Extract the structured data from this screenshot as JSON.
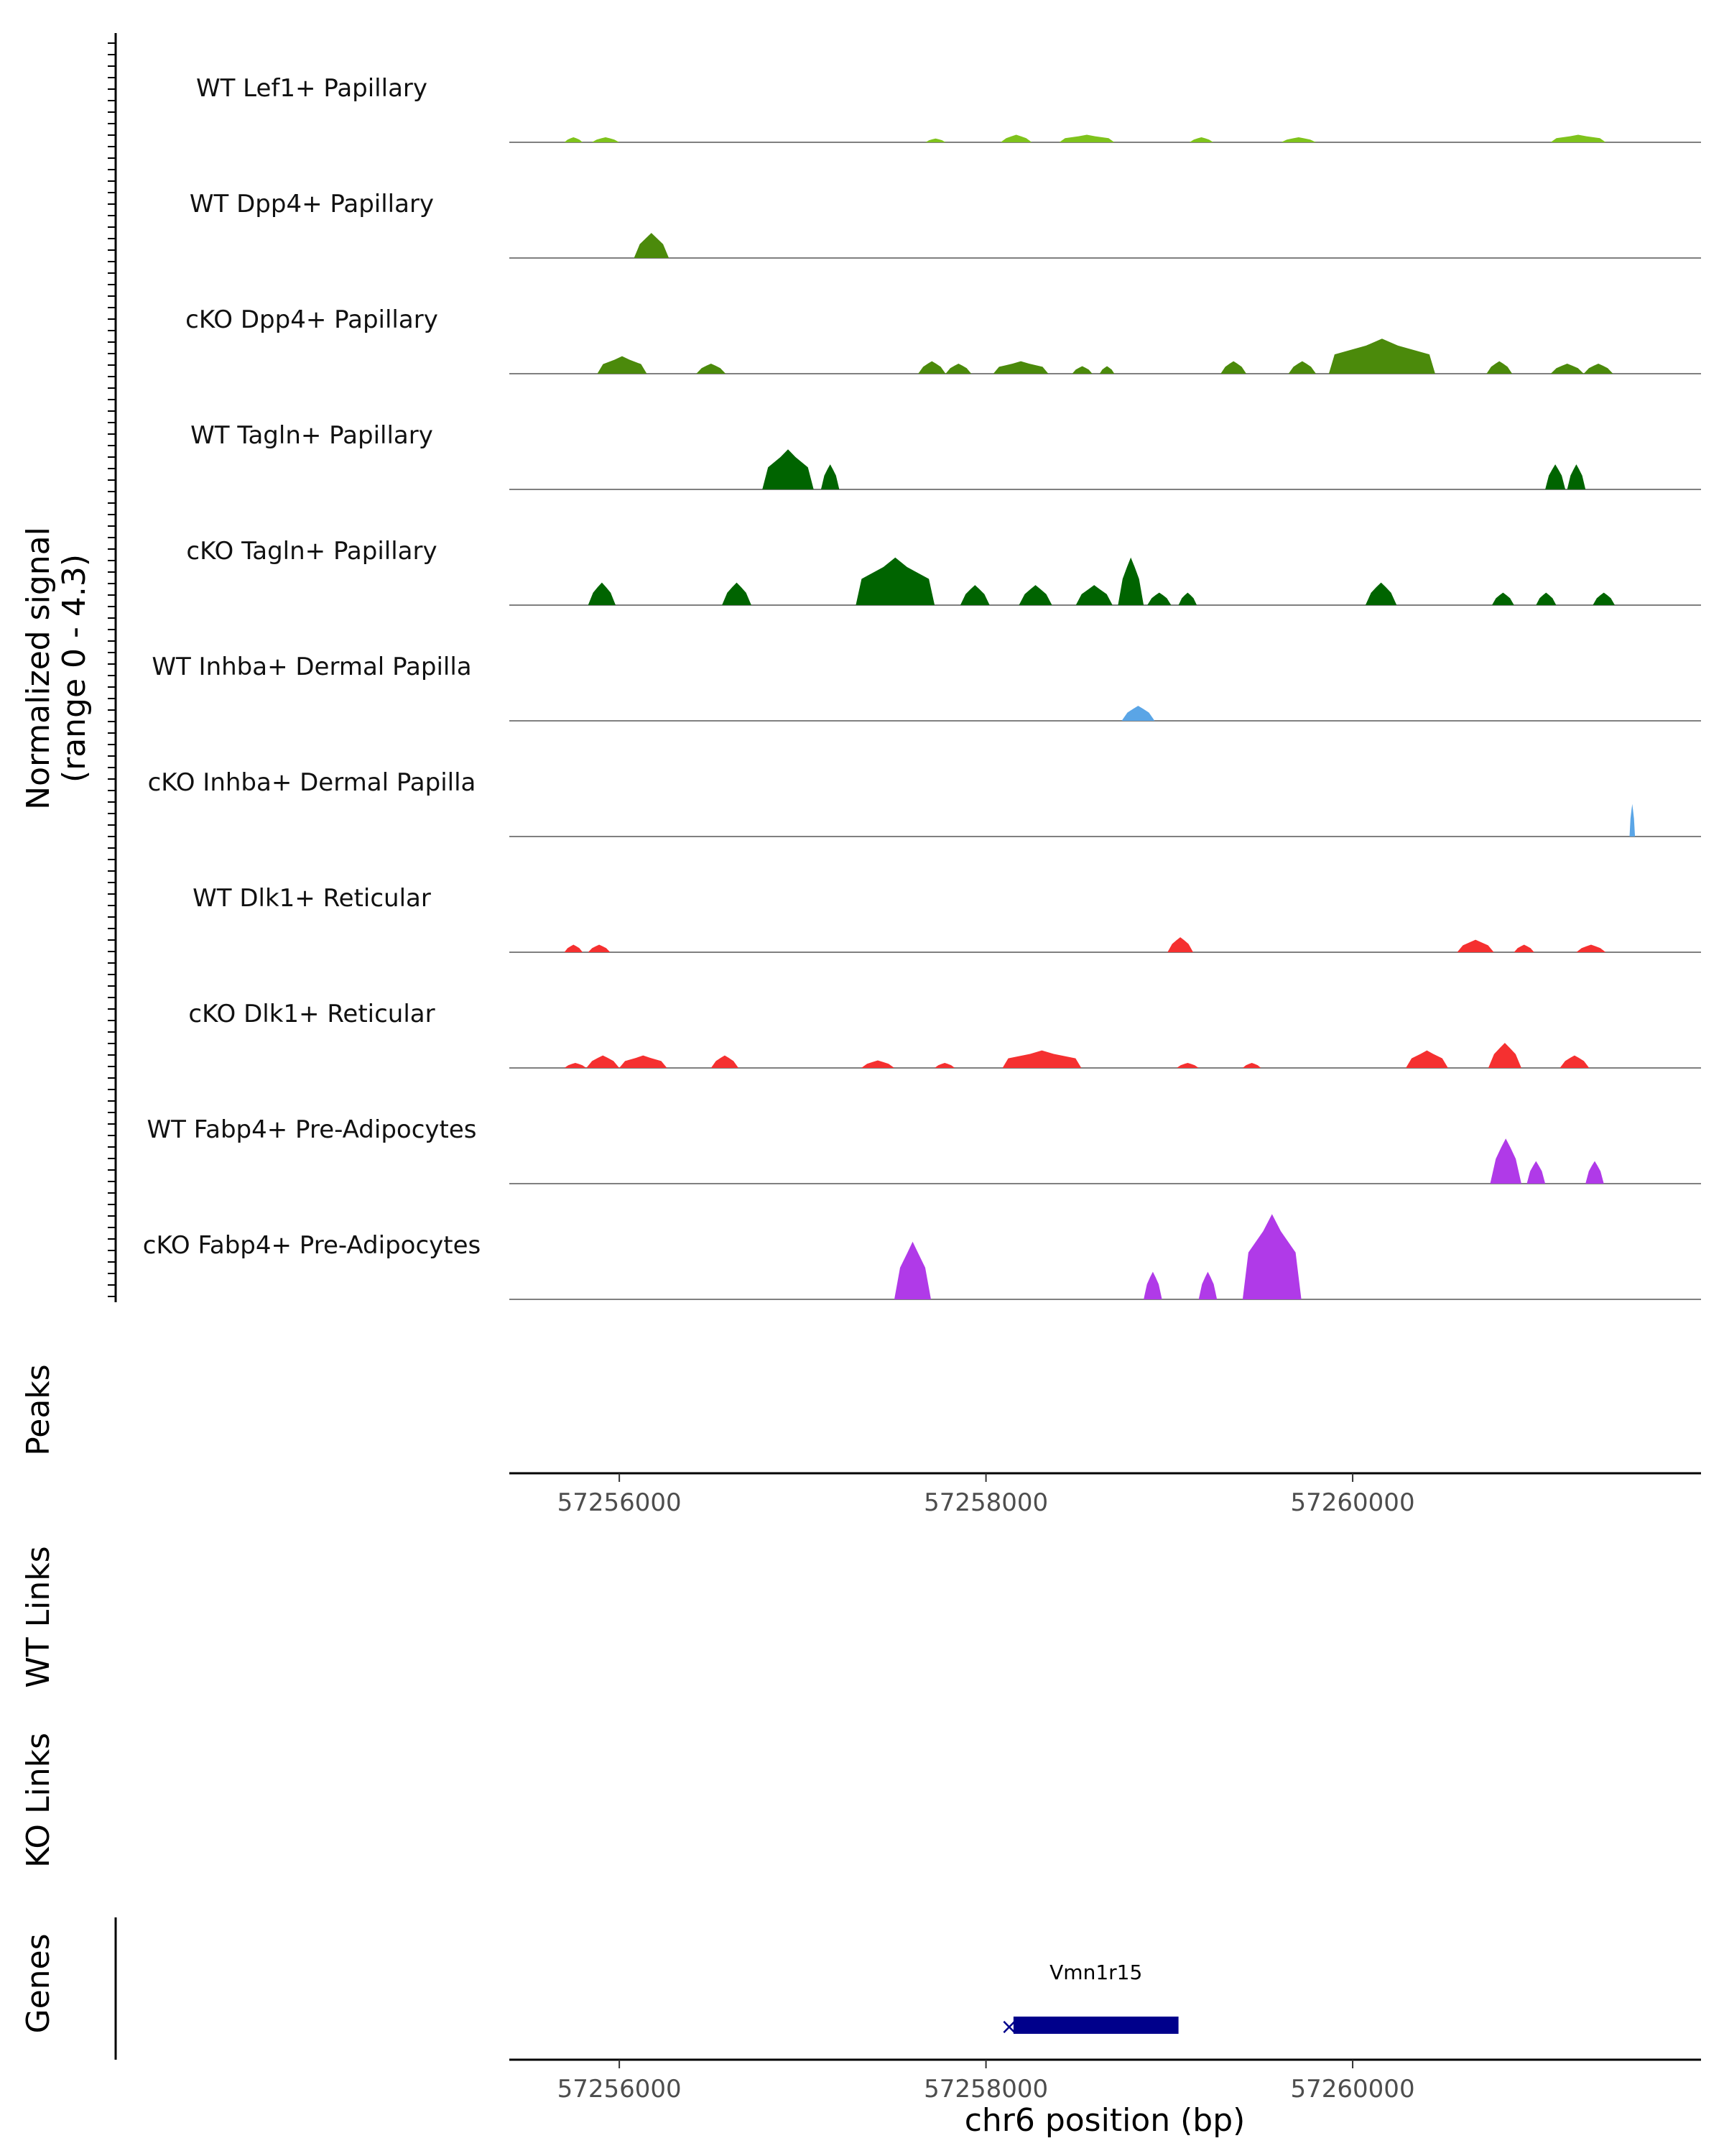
{
  "chart_data": {
    "type": "area",
    "title": "",
    "chromosome": "chr6",
    "xlabel": "chr6 position (bp)",
    "xlim": [
      57255400,
      57261900
    ],
    "xticks": [
      57256000,
      57258000,
      57260000
    ],
    "xtick_labels": [
      "57256000",
      "57258000",
      "57260000"
    ],
    "ylabel": "Normalized signal",
    "ylabel_range": "(range 0 - 4.3)",
    "ylim": [
      0,
      4.3
    ],
    "colors": {
      "Lef1": "#7fc31c",
      "Dpp4": "#4b8a0b",
      "Tagln": "#006400",
      "Inhba": "#5aa5e6",
      "Dlk1": "#f53030",
      "Fabp4": "#b03ae8",
      "gene": "#00008b",
      "axis": "#000000",
      "baseline": "#808080"
    },
    "series": [
      {
        "name": "WT Lef1+ Papillary",
        "color_key": "Lef1",
        "peaks": [
          {
            "start": 57255700,
            "end": 57255800,
            "height": 0.2
          },
          {
            "start": 57255850,
            "end": 57256000,
            "height": 0.2
          },
          {
            "start": 57257670,
            "end": 57257780,
            "height": 0.15
          },
          {
            "start": 57258080,
            "end": 57258250,
            "height": 0.3
          },
          {
            "start": 57258400,
            "end": 57258700,
            "height": 0.3
          },
          {
            "start": 57259110,
            "end": 57259240,
            "height": 0.2
          },
          {
            "start": 57259610,
            "end": 57259800,
            "height": 0.2
          },
          {
            "start": 57261080,
            "end": 57261380,
            "height": 0.3
          }
        ]
      },
      {
        "name": "WT Dpp4+ Papillary",
        "color_key": "Dpp4",
        "peaks": [
          {
            "start": 57256080,
            "end": 57256270,
            "height": 1.0
          }
        ]
      },
      {
        "name": "cKO Dpp4+ Papillary",
        "color_key": "Dpp4",
        "peaks": [
          {
            "start": 57255880,
            "end": 57256150,
            "height": 0.7
          },
          {
            "start": 57256420,
            "end": 57256580,
            "height": 0.4
          },
          {
            "start": 57257630,
            "end": 57257780,
            "height": 0.5
          },
          {
            "start": 57257780,
            "end": 57257920,
            "height": 0.4
          },
          {
            "start": 57258040,
            "end": 57258340,
            "height": 0.5
          },
          {
            "start": 57258470,
            "end": 57258580,
            "height": 0.3
          },
          {
            "start": 57258620,
            "end": 57258700,
            "height": 0.3
          },
          {
            "start": 57259280,
            "end": 57259420,
            "height": 0.5
          },
          {
            "start": 57259650,
            "end": 57259800,
            "height": 0.5
          },
          {
            "start": 57259870,
            "end": 57260450,
            "height": 1.4
          },
          {
            "start": 57260730,
            "end": 57260870,
            "height": 0.5
          },
          {
            "start": 57261080,
            "end": 57261260,
            "height": 0.4
          },
          {
            "start": 57261260,
            "end": 57261420,
            "height": 0.4
          }
        ]
      },
      {
        "name": "WT Tagln+ Papillary",
        "color_key": "Tagln",
        "peaks": [
          {
            "start": 57256780,
            "end": 57257060,
            "height": 1.6
          },
          {
            "start": 57257100,
            "end": 57257200,
            "height": 1.0
          },
          {
            "start": 57261050,
            "end": 57261160,
            "height": 1.0
          },
          {
            "start": 57261170,
            "end": 57261270,
            "height": 1.0
          }
        ]
      },
      {
        "name": "cKO Tagln+ Papillary",
        "color_key": "Tagln",
        "peaks": [
          {
            "start": 57255830,
            "end": 57255980,
            "height": 0.9
          },
          {
            "start": 57256560,
            "end": 57256720,
            "height": 0.9
          },
          {
            "start": 57257290,
            "end": 57257720,
            "height": 1.9
          },
          {
            "start": 57257860,
            "end": 57258020,
            "height": 0.8
          },
          {
            "start": 57258180,
            "end": 57258360,
            "height": 0.8
          },
          {
            "start": 57258490,
            "end": 57258690,
            "height": 0.8
          },
          {
            "start": 57258720,
            "end": 57258860,
            "height": 1.9
          },
          {
            "start": 57258880,
            "end": 57259010,
            "height": 0.5
          },
          {
            "start": 57259050,
            "end": 57259150,
            "height": 0.5
          },
          {
            "start": 57260070,
            "end": 57260240,
            "height": 0.9
          },
          {
            "start": 57260760,
            "end": 57260880,
            "height": 0.5
          },
          {
            "start": 57261000,
            "end": 57261110,
            "height": 0.5
          },
          {
            "start": 57261310,
            "end": 57261430,
            "height": 0.5
          }
        ]
      },
      {
        "name": "WT Inhba+ Dermal Papilla",
        "color_key": "Inhba",
        "peaks": [
          {
            "start": 57258740,
            "end": 57258920,
            "height": 0.6
          }
        ]
      },
      {
        "name": "cKO Inhba+ Dermal Papilla",
        "color_key": "Inhba",
        "peaks": [
          {
            "start": 57261510,
            "end": 57261540,
            "height": 1.3
          }
        ]
      },
      {
        "name": "WT Dlk1+ Reticular",
        "color_key": "Dlk1",
        "peaks": [
          {
            "start": 57255700,
            "end": 57255800,
            "height": 0.3
          },
          {
            "start": 57255830,
            "end": 57255950,
            "height": 0.3
          },
          {
            "start": 57258990,
            "end": 57259130,
            "height": 0.6
          },
          {
            "start": 57260570,
            "end": 57260770,
            "height": 0.5
          },
          {
            "start": 57260880,
            "end": 57260990,
            "height": 0.3
          },
          {
            "start": 57261220,
            "end": 57261380,
            "height": 0.3
          }
        ]
      },
      {
        "name": "cKO Dlk1+ Reticular",
        "color_key": "Dlk1",
        "peaks": [
          {
            "start": 57255700,
            "end": 57255820,
            "height": 0.2
          },
          {
            "start": 57255820,
            "end": 57256000,
            "height": 0.5
          },
          {
            "start": 57256000,
            "end": 57256260,
            "height": 0.5
          },
          {
            "start": 57256500,
            "end": 57256650,
            "height": 0.5
          },
          {
            "start": 57257320,
            "end": 57257500,
            "height": 0.3
          },
          {
            "start": 57257720,
            "end": 57257830,
            "height": 0.2
          },
          {
            "start": 57258090,
            "end": 57258520,
            "height": 0.7
          },
          {
            "start": 57259040,
            "end": 57259160,
            "height": 0.2
          },
          {
            "start": 57259400,
            "end": 57259500,
            "height": 0.2
          },
          {
            "start": 57260290,
            "end": 57260520,
            "height": 0.7
          },
          {
            "start": 57260740,
            "end": 57260920,
            "height": 1.0
          },
          {
            "start": 57261130,
            "end": 57261290,
            "height": 0.5
          }
        ]
      },
      {
        "name": "WT Fabp4+ Pre-Adipocytes",
        "color_key": "Fabp4",
        "peaks": [
          {
            "start": 57260750,
            "end": 57260920,
            "height": 1.8
          },
          {
            "start": 57260950,
            "end": 57261050,
            "height": 0.9
          },
          {
            "start": 57261270,
            "end": 57261370,
            "height": 0.9
          }
        ]
      },
      {
        "name": "cKO Fabp4+ Pre-Adipocytes",
        "color_key": "Fabp4",
        "peaks": [
          {
            "start": 57257500,
            "end": 57257700,
            "height": 2.3
          },
          {
            "start": 57258860,
            "end": 57258960,
            "height": 1.1
          },
          {
            "start": 57259160,
            "end": 57259260,
            "height": 1.1
          },
          {
            "start": 57259400,
            "end": 57259720,
            "height": 3.4
          }
        ]
      }
    ],
    "tracks": {
      "peaks": {
        "label": "Peaks"
      },
      "wt_links": {
        "label": "WT Links"
      },
      "ko_links": {
        "label": "KO Links"
      },
      "genes": {
        "label": "Genes"
      }
    },
    "genes": [
      {
        "name": "Vmn1r15",
        "start": 57258150,
        "end": 57259050,
        "strand": "-",
        "marker": "×"
      }
    ]
  }
}
